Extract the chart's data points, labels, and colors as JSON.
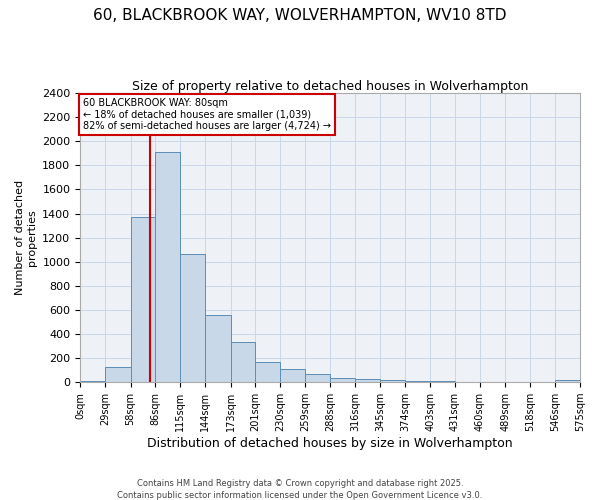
{
  "title": "60, BLACKBROOK WAY, WOLVERHAMPTON, WV10 8TD",
  "subtitle": "Size of property relative to detached houses in Wolverhampton",
  "xlabel": "Distribution of detached houses by size in Wolverhampton",
  "ylabel": "Number of detached\nproperties",
  "bins": [
    0,
    29,
    58,
    86,
    115,
    144,
    173,
    201,
    230,
    259,
    288,
    316,
    345,
    374,
    403,
    431,
    460,
    489,
    518,
    546,
    575
  ],
  "counts": [
    10,
    130,
    1370,
    1910,
    1060,
    560,
    335,
    170,
    110,
    65,
    35,
    28,
    18,
    10,
    8,
    2,
    0,
    0,
    0,
    15
  ],
  "bar_color": "#c8d8e8",
  "bar_edge_color": "#5b8db8",
  "property_size": 80,
  "property_line_color": "#cc0000",
  "annotation_text": "60 BLACKBROOK WAY: 80sqm\n← 18% of detached houses are smaller (1,039)\n82% of semi-detached houses are larger (4,724) →",
  "annotation_box_color": "#cc0000",
  "ylim": [
    0,
    2400
  ],
  "yticks": [
    0,
    200,
    400,
    600,
    800,
    1000,
    1200,
    1400,
    1600,
    1800,
    2000,
    2200,
    2400
  ],
  "tick_labels": [
    "0sqm",
    "29sqm",
    "58sqm",
    "86sqm",
    "115sqm",
    "144sqm",
    "173sqm",
    "201sqm",
    "230sqm",
    "259sqm",
    "288sqm",
    "316sqm",
    "345sqm",
    "374sqm",
    "403sqm",
    "431sqm",
    "460sqm",
    "489sqm",
    "518sqm",
    "546sqm",
    "575sqm"
  ],
  "footer_line1": "Contains HM Land Registry data © Crown copyright and database right 2025.",
  "footer_line2": "Contains public sector information licensed under the Open Government Licence v3.0.",
  "background_color": "#ffffff",
  "plot_bg_color": "#eef2f7",
  "grid_color": "#c8d8e8"
}
